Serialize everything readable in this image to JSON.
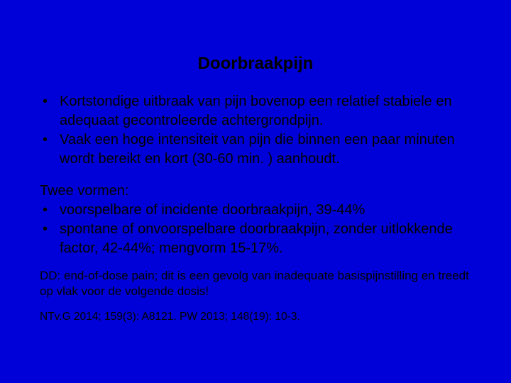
{
  "background_color": "#0000d8",
  "text_color": "#000000",
  "font_family": "Verdana",
  "title": "Doorbraakpijn",
  "bullets_1": [
    "Kortstondige uitbraak van pijn bovenop een relatief stabiele en adequaat gecontroleerde achtergrondpijn.",
    "Vaak een hoge intensiteit van pijn die binnen een paar minuten wordt bereikt en kort (30-60 min. ) aanhoudt."
  ],
  "subheading": "Twee vormen:",
  "bullets_2": [
    "voorspelbare of incidente doorbraakpijn, 39-44%",
    "spontane of onvoorspelbare doorbraakpijn, zonder uitlokkende factor, 42-44%; mengvorm 15-17%."
  ],
  "dd_text": "DD: end-of-dose pain; dit is een gevolg van inadequate basispijnstilling en treedt op vlak voor de volgende dosis!",
  "references": "NTv.G 2014; 159(3): A8121. PW 2013; 148(19): 10-3.",
  "font_sizes": {
    "title": 24,
    "body": 20,
    "dd": 17,
    "refs": 15.5
  }
}
